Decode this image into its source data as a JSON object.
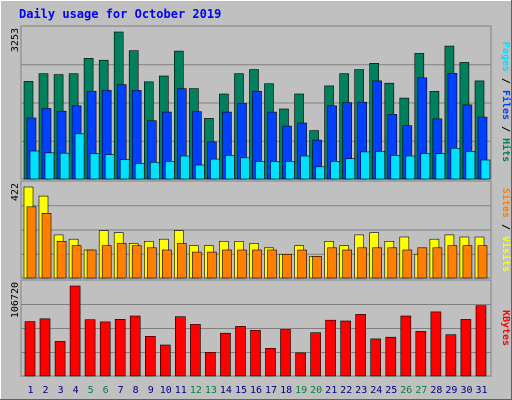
{
  "title": "Daily usage for October 2019",
  "colors": {
    "background": "#C0C0C0",
    "panel_border": "#808080",
    "title": "#0000FF",
    "hits": "#00805C",
    "files": "#0040FF",
    "pages": "#00E0FF",
    "visits": "#FFFF00",
    "sites": "#FF8000",
    "kbytes": "#FF0000",
    "weekend_label": "#008040",
    "weekday_label": "#000080"
  },
  "chart_data": [
    {
      "type": "bar",
      "panel": "top",
      "ymax_label": "3253",
      "ymax": 3253,
      "legend": [
        {
          "name": "Pages",
          "color": "#00E0FF"
        },
        {
          "name": "/",
          "color": "#000000"
        },
        {
          "name": "Files",
          "color": "#0040FF"
        },
        {
          "name": "/",
          "color": "#000000"
        },
        {
          "name": "Hits",
          "color": "#00805C"
        }
      ],
      "categories": [
        "1",
        "2",
        "3",
        "4",
        "5",
        "6",
        "7",
        "8",
        "9",
        "10",
        "11",
        "12",
        "13",
        "14",
        "15",
        "16",
        "17",
        "18",
        "19",
        "20",
        "21",
        "22",
        "23",
        "24",
        "25",
        "26",
        "27",
        "28",
        "29",
        "30",
        "31"
      ],
      "series": [
        {
          "name": "Hits",
          "values": [
            2160,
            2330,
            2310,
            2330,
            2670,
            2630,
            3253,
            2840,
            2150,
            2280,
            2830,
            2000,
            1340,
            1880,
            2330,
            2420,
            2110,
            1550,
            1880,
            1070,
            2060,
            2330,
            2420,
            2560,
            2120,
            1790,
            2780,
            1940,
            2940,
            2580,
            2170
          ]
        },
        {
          "name": "Files",
          "values": [
            1350,
            1560,
            1500,
            1620,
            1940,
            1960,
            2090,
            1960,
            1290,
            1480,
            2000,
            1490,
            820,
            1480,
            1670,
            1940,
            1480,
            1170,
            1240,
            860,
            1620,
            1690,
            1700,
            2170,
            1430,
            1180,
            2240,
            1330,
            2340,
            1640,
            1370
          ]
        },
        {
          "name": "Pages",
          "values": [
            620,
            580,
            570,
            1000,
            560,
            540,
            430,
            340,
            370,
            390,
            510,
            310,
            440,
            520,
            470,
            390,
            390,
            390,
            510,
            270,
            390,
            450,
            600,
            610,
            520,
            510,
            560,
            560,
            680,
            610,
            420
          ]
        }
      ]
    },
    {
      "type": "bar",
      "panel": "middle",
      "ymax_label": "422",
      "ymax": 422,
      "legend": [
        {
          "name": "Sites",
          "color": "#FF8000"
        },
        {
          "name": "/",
          "color": "#000000"
        },
        {
          "name": "Visits",
          "color": "#FFFF00"
        }
      ],
      "categories": [
        "1",
        "2",
        "3",
        "4",
        "5",
        "6",
        "7",
        "8",
        "9",
        "10",
        "11",
        "12",
        "13",
        "14",
        "15",
        "16",
        "17",
        "18",
        "19",
        "20",
        "21",
        "22",
        "23",
        "24",
        "25",
        "26",
        "27",
        "28",
        "29",
        "30",
        "31"
      ],
      "series": [
        {
          "name": "Visits",
          "values": [
            422,
            380,
            200,
            180,
            130,
            220,
            210,
            160,
            170,
            180,
            220,
            150,
            150,
            170,
            170,
            160,
            140,
            110,
            150,
            100,
            170,
            150,
            200,
            210,
            170,
            190,
            110,
            180,
            200,
            190,
            190
          ]
        },
        {
          "name": "Sites",
          "values": [
            330,
            300,
            170,
            150,
            130,
            150,
            160,
            150,
            140,
            130,
            160,
            120,
            120,
            130,
            130,
            130,
            130,
            110,
            130,
            100,
            140,
            130,
            140,
            140,
            140,
            130,
            140,
            140,
            150,
            150,
            150
          ]
        }
      ]
    },
    {
      "type": "bar",
      "panel": "bottom",
      "ymax_label": "106720",
      "ymax": 106720,
      "legend": [
        {
          "name": "KBytes",
          "color": "#FF0000"
        }
      ],
      "categories": [
        "1",
        "2",
        "3",
        "4",
        "5",
        "6",
        "7",
        "8",
        "9",
        "10",
        "11",
        "12",
        "13",
        "14",
        "15",
        "16",
        "17",
        "18",
        "19",
        "20",
        "21",
        "22",
        "23",
        "24",
        "25",
        "26",
        "27",
        "28",
        "29",
        "30",
        "31"
      ],
      "series": [
        {
          "name": "KBytes",
          "values": [
            64500,
            67800,
            41000,
            106720,
            66800,
            64200,
            67200,
            71200,
            47100,
            36700,
            70300,
            61200,
            28100,
            50800,
            58800,
            54200,
            32900,
            55100,
            27400,
            51400,
            66200,
            65200,
            73000,
            44000,
            46000,
            71200,
            52900,
            76000,
            49000,
            67100,
            83400
          ]
        }
      ]
    }
  ],
  "weekend_days": [
    5,
    6,
    12,
    13,
    19,
    20,
    26,
    27
  ]
}
